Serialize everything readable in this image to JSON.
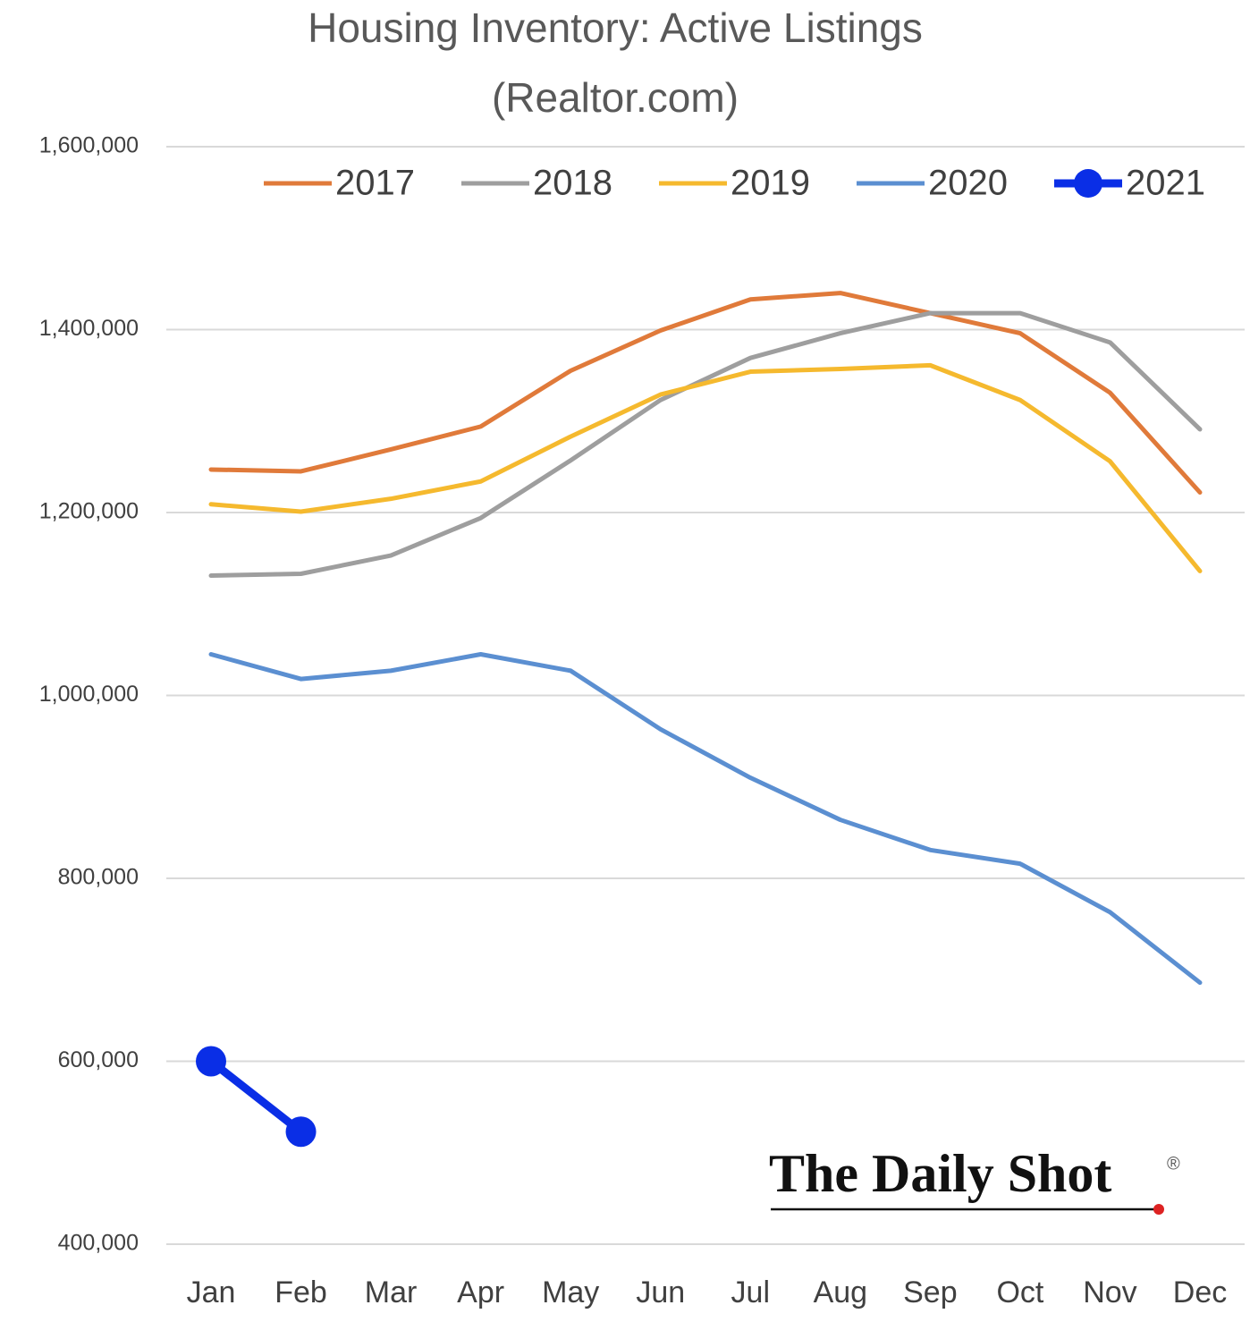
{
  "chart_data": {
    "type": "line",
    "title": "Housing Inventory: Active Listings",
    "subtitle": "(Realtor.com)",
    "watermark": "The Daily Shot",
    "watermark_mark": "®",
    "categories": [
      "Jan",
      "Feb",
      "Mar",
      "Apr",
      "May",
      "Jun",
      "Jul",
      "Aug",
      "Sep",
      "Oct",
      "Nov",
      "Dec"
    ],
    "series": [
      {
        "name": "2017",
        "color": "#e07a3a",
        "values": [
          1247000,
          1245000,
          1269000,
          1294000,
          1355000,
          1399000,
          1433000,
          1440000,
          1418000,
          1396000,
          1331000,
          1222000
        ]
      },
      {
        "name": "2018",
        "color": "#9e9e9e",
        "values": [
          1131000,
          1133000,
          1153000,
          1194000,
          1257000,
          1323000,
          1369000,
          1396000,
          1418000,
          1418000,
          1386000,
          1291000
        ]
      },
      {
        "name": "2019",
        "color": "#f5b92e",
        "values": [
          1209000,
          1201000,
          1215000,
          1234000,
          1283000,
          1329000,
          1354000,
          1357000,
          1361000,
          1323000,
          1256000,
          1136000
        ]
      },
      {
        "name": "2020",
        "color": "#5b8fd1",
        "values": [
          1045000,
          1018000,
          1027000,
          1045000,
          1027000,
          963000,
          910000,
          864000,
          831000,
          816000,
          763000,
          686000
        ]
      },
      {
        "name": "2021",
        "color": "#0a2ee6",
        "marker": "circle",
        "values": [
          600000,
          523000,
          null,
          null,
          null,
          null,
          null,
          null,
          null,
          null,
          null,
          null
        ]
      }
    ],
    "ylim": [
      400000,
      1600000
    ],
    "yticks": [
      {
        "value": 400000,
        "label": "400,000"
      },
      {
        "value": 600000,
        "label": "600,000"
      },
      {
        "value": 800000,
        "label": "800,000"
      },
      {
        "value": 1000000,
        "label": "1,000,000"
      },
      {
        "value": 1200000,
        "label": "1,200,000"
      },
      {
        "value": 1400000,
        "label": "1,400,000"
      },
      {
        "value": 1600000,
        "label": "1,600,000"
      }
    ],
    "grid": true,
    "legend": "top"
  }
}
